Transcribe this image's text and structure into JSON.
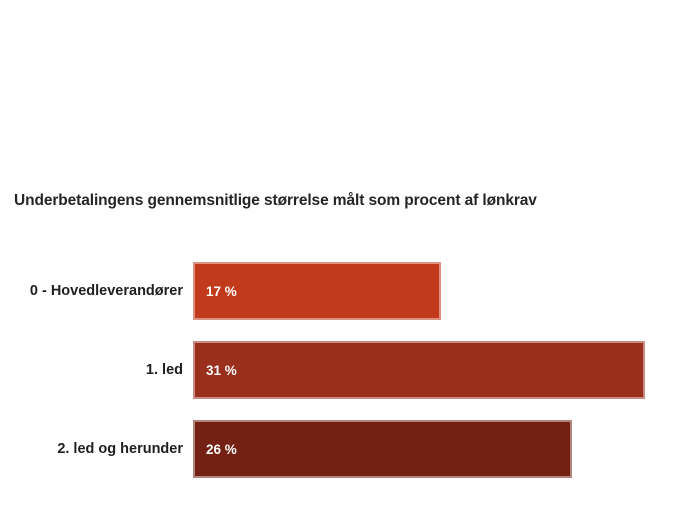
{
  "page": {
    "background_color": "#FFFFFF"
  },
  "chart_data": {
    "type": "bar",
    "orientation": "horizontal",
    "title": "Underbetalingens gennemsnitlige størrelse målt som procent af lønkrav",
    "categories": [
      "0 - Hovedleverandører",
      "1. led",
      "2. led og herunder"
    ],
    "values": [
      17,
      31,
      26
    ],
    "xlim": [
      0,
      34.5
    ],
    "grid": false,
    "legend": false,
    "xlabel": "",
    "ylabel": "",
    "title_color": "#252525",
    "category_label_color": "#1F1F1F",
    "value_label_color": "#FFFFFF",
    "bars": [
      {
        "label": "0 - Hovedleverandører",
        "value": 17,
        "value_label": "17 %",
        "color": "#C13A1B"
      },
      {
        "label": "1. led",
        "value": 31,
        "value_label": "31 %",
        "color": "#9A2F1E"
      },
      {
        "label": "2. led og herunder",
        "value": 26,
        "value_label": "26 %",
        "color": "#742114"
      }
    ]
  }
}
